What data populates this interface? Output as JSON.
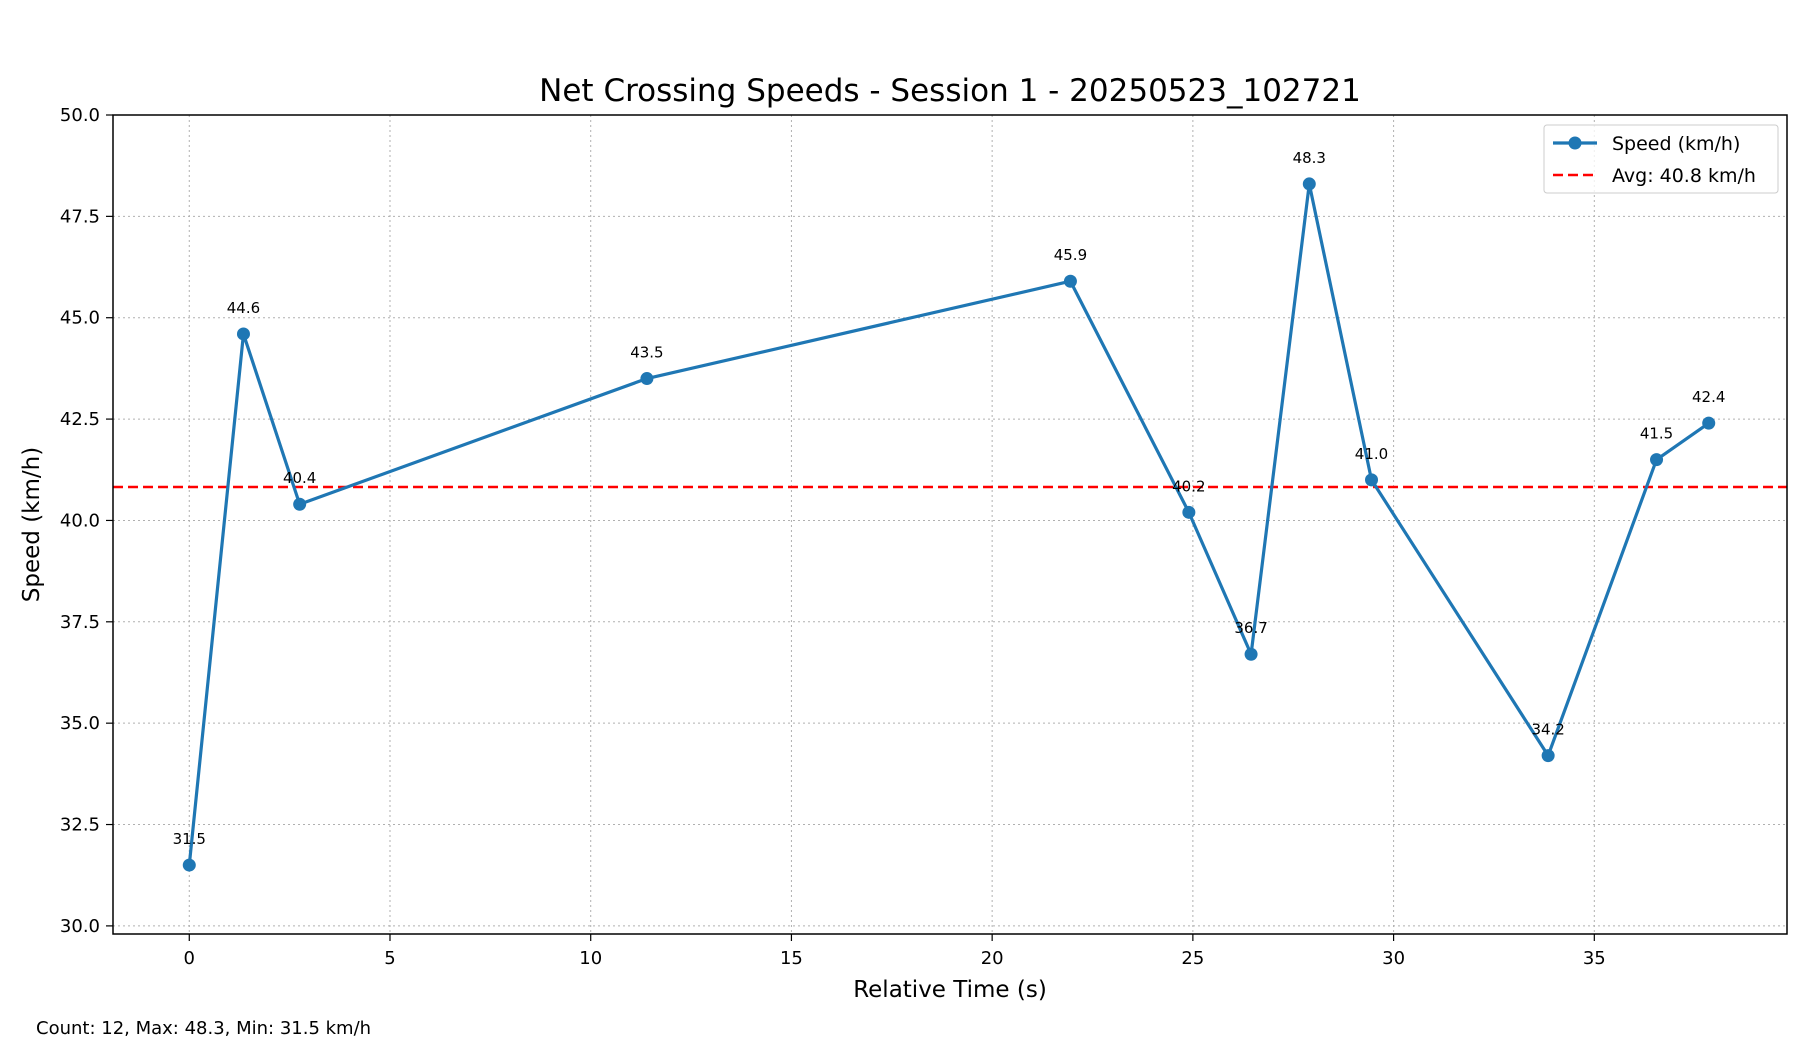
{
  "chart_data": {
    "type": "line",
    "title": "Net Crossing Speeds - Session 1 - 20250523_102721",
    "xlabel": "Relative Time (s)",
    "ylabel": "Speed (km/h)",
    "xlim": [
      -1.9,
      39.8
    ],
    "ylim": [
      29.8,
      50.0
    ],
    "x_ticks": [
      0,
      5,
      10,
      15,
      20,
      25,
      30,
      35
    ],
    "y_ticks": [
      30.0,
      32.5,
      35.0,
      37.5,
      40.0,
      42.5,
      45.0,
      47.5,
      50.0
    ],
    "x_tick_labels": [
      "0",
      "5",
      "10",
      "15",
      "20",
      "25",
      "30",
      "35"
    ],
    "y_tick_labels": [
      "30.0",
      "32.5",
      "35.0",
      "37.5",
      "40.0",
      "42.5",
      "45.0",
      "47.5",
      "50.0"
    ],
    "grid": true,
    "legend_position": "top-right",
    "series": [
      {
        "name": "Speed (km/h)",
        "color": "#1f77b4",
        "x": [
          0.0,
          1.35,
          2.75,
          11.4,
          21.95,
          24.9,
          26.45,
          27.9,
          29.45,
          33.85,
          36.55,
          37.85
        ],
        "y": [
          31.5,
          44.6,
          40.4,
          43.5,
          45.9,
          40.2,
          36.7,
          48.3,
          41.0,
          34.2,
          41.5,
          42.4
        ],
        "labels": [
          "31.5",
          "44.6",
          "40.4",
          "43.5",
          "45.9",
          "40.2",
          "36.7",
          "48.3",
          "41.0",
          "34.2",
          "41.5",
          "42.4"
        ]
      }
    ],
    "reference_lines": [
      {
        "name": "Avg: 40.8 km/h",
        "value": 40.825,
        "color": "#ff0000",
        "style": "dashed"
      }
    ],
    "footer": "Count: 12, Max: 48.3, Min: 31.5 km/h"
  }
}
